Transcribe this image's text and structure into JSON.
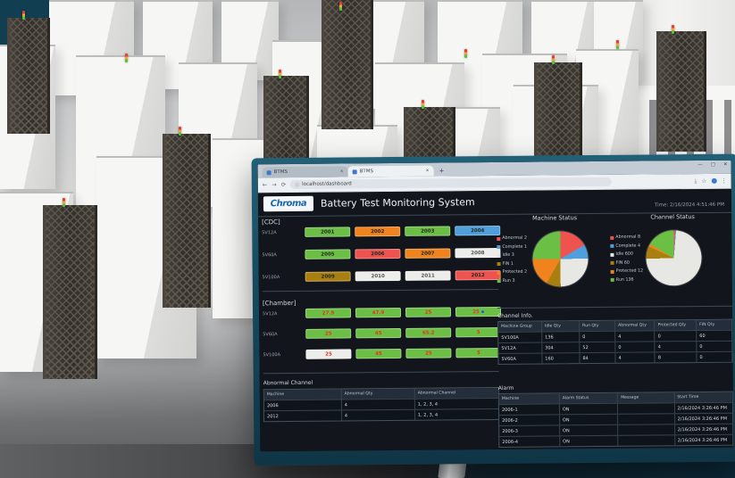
{
  "browser": {
    "tabs": [
      "BTMS",
      "BTMS"
    ],
    "new_tab": "+",
    "url": "localhost/dashboard",
    "window_controls": {
      "minimize": "—",
      "maximize": "▢",
      "close": "✕"
    },
    "icons": {
      "back": "←",
      "forward": "→",
      "refresh": "⟳",
      "info": "ⓘ",
      "download": "⤓",
      "star": "☆",
      "menu": "⋮"
    }
  },
  "header": {
    "logo": "Chroma",
    "title": "Battery Test Monitoring System",
    "time": "Time: 2/16/2024 4:51:46 PM"
  },
  "status_colors": {
    "run": "#6cbf45",
    "protected": "#f0831e",
    "complete": "#4e9fdb",
    "abnormal": "#ef5350",
    "idle": "#ededeb",
    "fin": "#a97f10"
  },
  "cdc": {
    "label": "[CDC]",
    "rows": [
      {
        "group": "5V12A",
        "machines": [
          {
            "id": "2001",
            "status": "run"
          },
          {
            "id": "2002",
            "status": "protected"
          },
          {
            "id": "2003",
            "status": "run"
          },
          {
            "id": "2004",
            "status": "complete"
          }
        ]
      },
      {
        "group": "5V60A",
        "machines": [
          {
            "id": "2005",
            "status": "run"
          },
          {
            "id": "2006",
            "status": "abnormal"
          },
          {
            "id": "2007",
            "status": "protected"
          },
          {
            "id": "2008",
            "status": "idle"
          }
        ]
      },
      {
        "group": "5V100A",
        "machines": [
          {
            "id": "2009",
            "status": "fin"
          },
          {
            "id": "2010",
            "status": "idle"
          },
          {
            "id": "2011",
            "status": "idle"
          },
          {
            "id": "2012",
            "status": "abnormal"
          }
        ]
      }
    ]
  },
  "chamber": {
    "label": "[Chamber]",
    "rows": [
      {
        "group": "5V12A",
        "chambers": [
          {
            "temp": "27.9",
            "status": "run",
            "alert_dot": false
          },
          {
            "temp": "47.9",
            "status": "run",
            "alert_dot": false
          },
          {
            "temp": "25",
            "status": "run",
            "alert_dot": false
          },
          {
            "temp": "25",
            "status": "run",
            "alert_dot": true
          }
        ]
      },
      {
        "group": "5V60A",
        "chambers": [
          {
            "temp": "25",
            "status": "run",
            "alert_dot": false
          },
          {
            "temp": "45",
            "status": "run",
            "alert_dot": false
          },
          {
            "temp": "65.2",
            "status": "run",
            "alert_dot": false
          },
          {
            "temp": "5",
            "status": "run",
            "alert_dot": false
          }
        ]
      },
      {
        "group": "5V100A",
        "chambers": [
          {
            "temp": "25",
            "status": "idle",
            "alert_dot": false
          },
          {
            "temp": "45",
            "status": "run",
            "alert_dot": false
          },
          {
            "temp": "25",
            "status": "run",
            "alert_dot": false
          },
          {
            "temp": "5",
            "status": "run",
            "alert_dot": false
          }
        ]
      }
    ]
  },
  "chart_data": [
    {
      "type": "pie",
      "title": "Machine Status",
      "labels": [
        "Abnormal",
        "Complete",
        "Idle",
        "FIN",
        "Protected",
        "Run"
      ],
      "values": [
        2,
        1,
        3,
        1,
        2,
        3
      ],
      "colors": [
        "#ef5350",
        "#4e9fdb",
        "#e7e7e3",
        "#a97f10",
        "#f0831e",
        "#6cbf45"
      ],
      "legend_position": "left"
    },
    {
      "type": "pie",
      "title": "Channel Status",
      "labels": [
        "Abnormal",
        "Complete",
        "Idle",
        "FIN",
        "Protected",
        "Run"
      ],
      "values": [
        8,
        4,
        600,
        60,
        12,
        136
      ],
      "colors": [
        "#ef5350",
        "#4e9fdb",
        "#e7e7e3",
        "#a97f10",
        "#f0831e",
        "#6cbf45"
      ],
      "legend_position": "left"
    }
  ],
  "channel_info": {
    "title": "Channel Info.",
    "headers": [
      "Machine Group",
      "Idle Qty",
      "Run Qty",
      "Abnormal Qty",
      "Protected Qty",
      "FIN Qty"
    ],
    "rows": [
      [
        "5V100A",
        "136",
        "0",
        "4",
        "0",
        "60"
      ],
      [
        "5V12A",
        "304",
        "52",
        "0",
        "4",
        "0"
      ],
      [
        "5V60A",
        "160",
        "84",
        "4",
        "8",
        "0"
      ]
    ]
  },
  "abnormal_channel": {
    "title": "Abnormal Channel",
    "headers": [
      "Machine",
      "Abnormal Qty",
      "Abnormal Channel"
    ],
    "rows": [
      [
        "2006",
        "4",
        "1, 2, 3, 4"
      ],
      [
        "2012",
        "4",
        "1, 2, 3, 4"
      ]
    ]
  },
  "alarm": {
    "title": "Alarm",
    "headers": [
      "Machine",
      "Alarm Status",
      "Message",
      "Start Time"
    ],
    "rows": [
      [
        "2006-1",
        "ON",
        "",
        "2/16/2024 3:26:46 PM"
      ],
      [
        "2006-2",
        "ON",
        "",
        "2/16/2024 3:26:46 PM"
      ],
      [
        "2006-3",
        "ON",
        "",
        "2/16/2024 3:26:46 PM"
      ],
      [
        "2006-4",
        "ON",
        "",
        "2/16/2024 3:26:46 PM"
      ]
    ]
  }
}
